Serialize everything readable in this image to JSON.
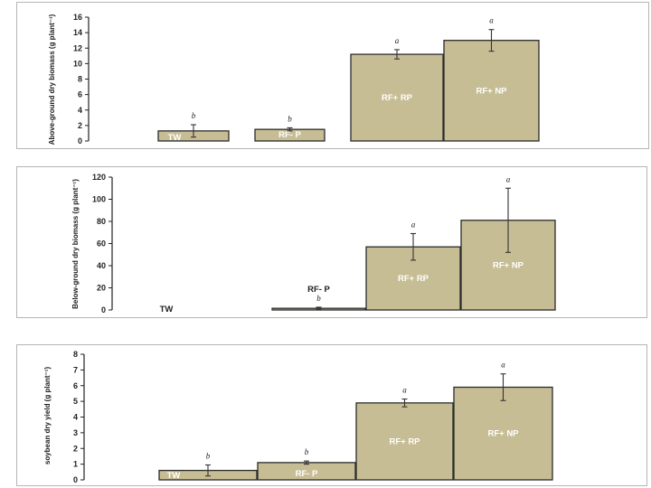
{
  "colors": {
    "bar_fill": "#c7bd95",
    "bar_stroke": "#2b2b2b",
    "axis": "#222222",
    "inside_label": "#ffffff"
  },
  "chart_data": [
    {
      "type": "bar",
      "categories": [
        "TW",
        "RF- P",
        "RF+ RP",
        "RF+ NP"
      ],
      "values": [
        1.3,
        1.5,
        11.2,
        13.0
      ],
      "errors": [
        0.8,
        0.2,
        0.6,
        1.4
      ],
      "significance": [
        "b",
        "b",
        "a",
        "a"
      ],
      "ylabel": "Above-ground dry biomass (g plant⁻¹)",
      "ylim": [
        0,
        16
      ],
      "yticks": [
        0,
        2,
        4,
        6,
        8,
        10,
        12,
        14,
        16
      ],
      "grid": false,
      "legend": "none"
    },
    {
      "type": "bar",
      "categories": [
        "TW",
        "RF- P",
        "RF+ RP",
        "RF+ NP"
      ],
      "values": [
        0,
        1.5,
        57,
        81
      ],
      "errors": [
        0,
        1.0,
        12,
        29
      ],
      "significance": [
        "",
        "b",
        "a",
        "a"
      ],
      "ylabel": "Below-ground dry biomass (g plant⁻¹)",
      "ylim": [
        0,
        120
      ],
      "yticks": [
        0,
        20,
        40,
        60,
        80,
        100,
        120
      ],
      "grid": false,
      "legend": "none"
    },
    {
      "type": "bar",
      "categories": [
        "TW",
        "RF- P",
        "RF+ RP",
        "RF+ NP"
      ],
      "values": [
        0.6,
        1.1,
        4.9,
        5.9
      ],
      "errors": [
        0.35,
        0.1,
        0.25,
        0.85
      ],
      "significance": [
        "b",
        "b",
        "a",
        "a"
      ],
      "ylabel": "soybean dry yield (g plant⁻¹)",
      "ylim": [
        0,
        8
      ],
      "yticks": [
        0,
        1,
        2,
        3,
        4,
        5,
        6,
        7,
        8
      ],
      "grid": false,
      "legend": "none"
    }
  ]
}
